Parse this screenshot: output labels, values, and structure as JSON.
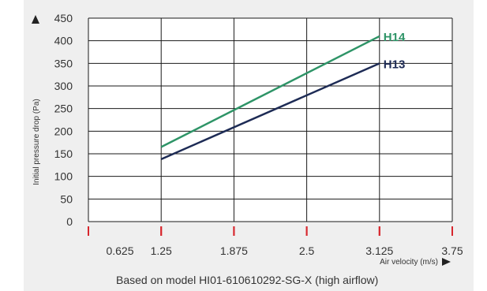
{
  "chart_data": {
    "type": "line",
    "xlabel": "Air velocity (m/s)",
    "ylabel": "Initial pressure drop (Pa)",
    "x_ticks": [
      0.625,
      1.25,
      1.875,
      2.5,
      3.125,
      3.75
    ],
    "x_tick_labels": [
      "0.625",
      "1.25",
      "1.875",
      "2.5",
      "3.125",
      "3.75"
    ],
    "y_ticks": [
      0,
      50,
      100,
      150,
      200,
      250,
      300,
      350,
      400,
      450
    ],
    "y_tick_labels": [
      "0",
      "50",
      "100",
      "150",
      "200",
      "250",
      "300",
      "350",
      "400",
      "450"
    ],
    "xlim": [
      0.625,
      3.75
    ],
    "ylim": [
      0,
      450
    ],
    "grid": true,
    "series": [
      {
        "name": "H14",
        "color": "#2e9467",
        "x": [
          1.25,
          3.125
        ],
        "y": [
          165,
          410
        ]
      },
      {
        "name": "H13",
        "color": "#1d2b55",
        "x": [
          1.25,
          3.125
        ],
        "y": [
          138,
          350
        ]
      }
    ],
    "footnote": "Based on model HI01-610610292-SG-X (high airflow)"
  },
  "colors": {
    "background": "#efefef",
    "plot_background": "#ffffff",
    "grid": "#1a1a1a",
    "tick_marks": "#d7262d",
    "text": "#333333"
  }
}
